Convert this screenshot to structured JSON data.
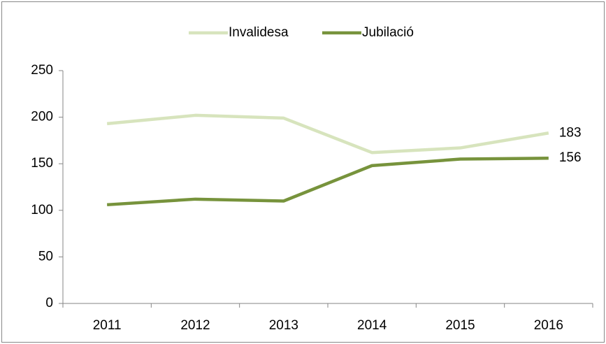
{
  "chart_data": {
    "type": "line",
    "categories": [
      "2011",
      "2012",
      "2013",
      "2014",
      "2015",
      "2016"
    ],
    "series": [
      {
        "name": "Invalidesa",
        "color": "#d7e4bd",
        "values": [
          193,
          202,
          199,
          162,
          167,
          183
        ]
      },
      {
        "name": "Jubilació",
        "color": "#77933c",
        "values": [
          106,
          112,
          110,
          148,
          155,
          156
        ]
      }
    ],
    "ylim": [
      0,
      250
    ],
    "yticks": [
      0,
      50,
      100,
      150,
      200,
      250
    ],
    "grid": false,
    "legend": "top"
  }
}
